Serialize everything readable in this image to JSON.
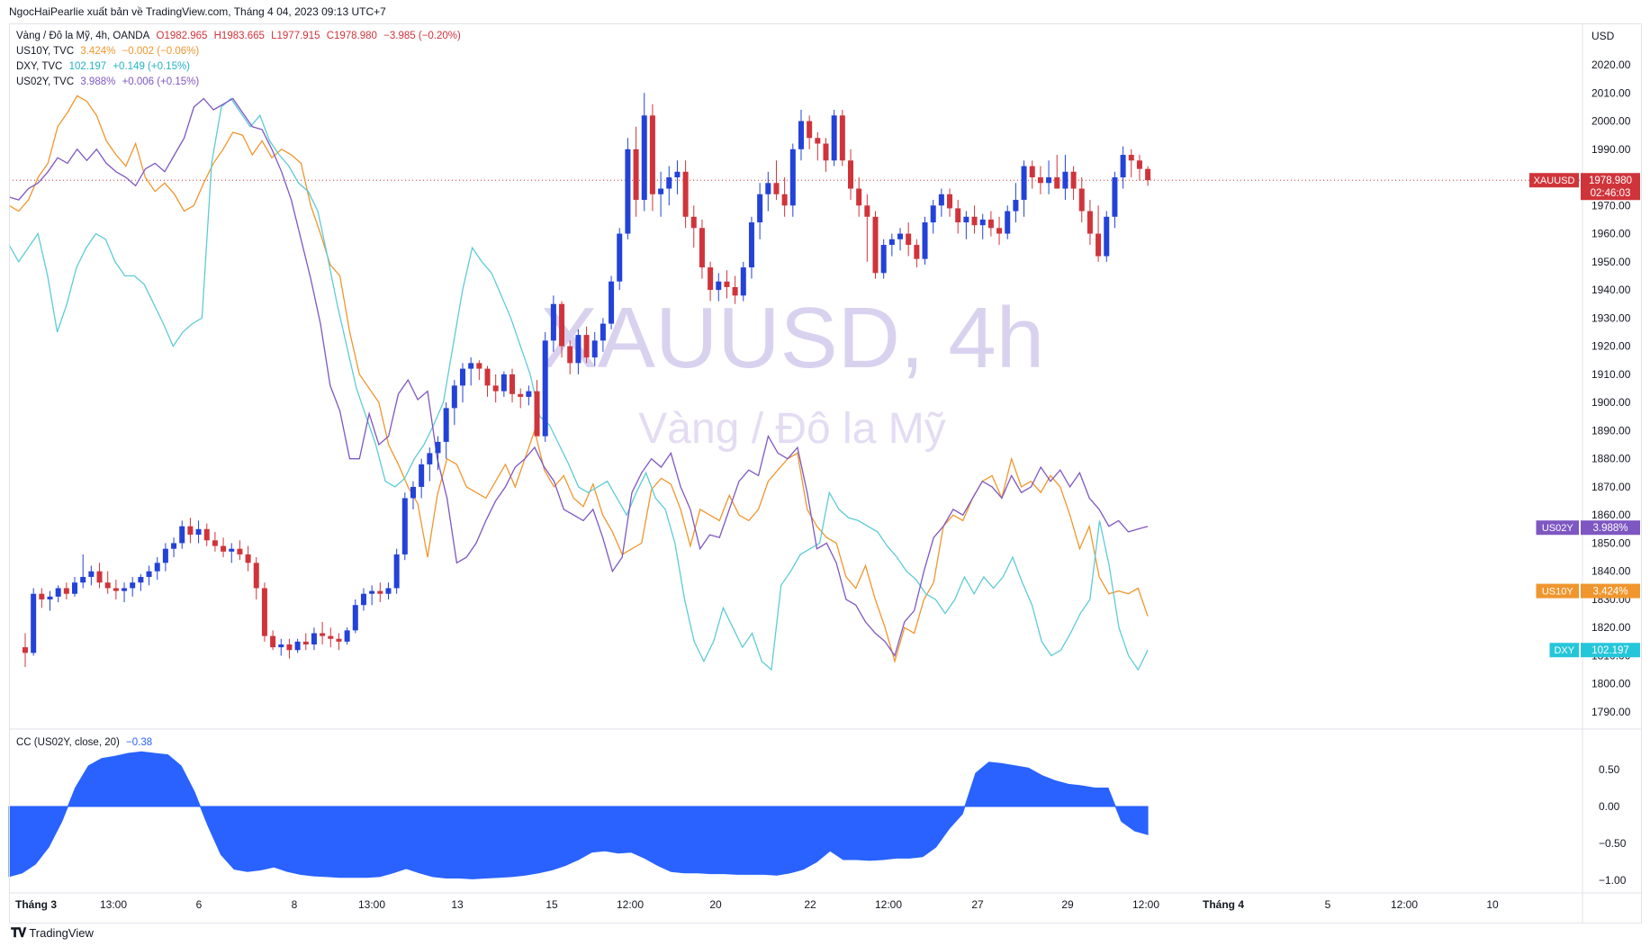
{
  "header": {
    "publisher_line": "NgocHaiPearlie xuất bản về TradingView.com, Tháng 4 04, 2023 09:13 UTC+7"
  },
  "legend": {
    "main": {
      "title": "Vàng / Đô la Mỹ, 4h, OANDA",
      "o": "O1982.965",
      "h": "H1983.665",
      "l": "L1977.915",
      "c": "C1978.980",
      "chg": "−3.985 (−0.20%)"
    },
    "us10y": {
      "title": "US10Y, TVC",
      "value": "3.424%",
      "chg": "−0.002 (−0.06%)"
    },
    "dxy": {
      "title": "DXY, TVC",
      "value": "102.197",
      "chg": "+0.149 (+0.15%)"
    },
    "us02y": {
      "title": "US02Y, TVC",
      "value": "3.988%",
      "chg": "+0.006 (+0.15%)"
    },
    "cc": {
      "title": "CC (US02Y, close, 20)",
      "value": "−0.38"
    }
  },
  "watermark": {
    "symbol": "XAUUSD, 4h",
    "description": "Vàng / Đô la Mỹ"
  },
  "footer": {
    "brand": "TradingView",
    "logo": "tv-logo-icon"
  },
  "colors": {
    "up": "#2342d8",
    "down": "#d0343b",
    "us10y": "#f0962e",
    "dxy": "#5ecbd6",
    "us02y": "#7e57c2",
    "cc_fill": "#2962ff",
    "price_line": "#d0343b"
  },
  "chart_data": {
    "type": "candlestick",
    "price_axis": {
      "unit": "USD",
      "min": 1785,
      "max": 2030,
      "ticks": [
        2020,
        2010,
        2000,
        1990,
        1980,
        1970,
        1960,
        1950,
        1940,
        1930,
        1920,
        1910,
        1900,
        1890,
        1880,
        1870,
        1860,
        1850,
        1840,
        1830,
        1820,
        1810,
        1800,
        1790
      ]
    },
    "time_axis": {
      "labels": [
        "Tháng 3",
        "13:00",
        "6",
        "8",
        "13:00",
        "13",
        "15",
        "12:00",
        "20",
        "22",
        "12:00",
        "27",
        "29",
        "12:00",
        "Tháng 4",
        "5",
        "12:00",
        "10"
      ]
    },
    "price_badges": [
      {
        "label": "XAUUSD",
        "value": "1978.980",
        "countdown": "02:46:03",
        "price": 1978.98
      },
      {
        "label": "US02Y",
        "value": "3.988%",
        "price": 1855.5
      },
      {
        "label": "US10Y",
        "value": "3.424%",
        "price": 1833.0
      },
      {
        "label": "DXY",
        "value": "102.197",
        "price": 1812.0
      }
    ],
    "current_price": 1978.98,
    "candles": [
      [
        1813,
        1818,
        1806,
        1811
      ],
      [
        1811,
        1834,
        1810,
        1832
      ],
      [
        1832,
        1834,
        1827,
        1830
      ],
      [
        1830,
        1833,
        1826,
        1831
      ],
      [
        1831,
        1835,
        1829,
        1834
      ],
      [
        1834,
        1836,
        1830,
        1832
      ],
      [
        1832,
        1838,
        1831,
        1836
      ],
      [
        1836,
        1846,
        1834,
        1838
      ],
      [
        1838,
        1842,
        1835,
        1840
      ],
      [
        1840,
        1843,
        1834,
        1836
      ],
      [
        1836,
        1840,
        1832,
        1834
      ],
      [
        1834,
        1837,
        1830,
        1833
      ],
      [
        1833,
        1836,
        1829,
        1834
      ],
      [
        1834,
        1838,
        1831,
        1836
      ],
      [
        1836,
        1839,
        1833,
        1838
      ],
      [
        1838,
        1842,
        1835,
        1840
      ],
      [
        1840,
        1845,
        1837,
        1843
      ],
      [
        1843,
        1850,
        1840,
        1848
      ],
      [
        1848,
        1852,
        1845,
        1850
      ],
      [
        1850,
        1858,
        1848,
        1856
      ],
      [
        1856,
        1859,
        1850,
        1853
      ],
      [
        1853,
        1858,
        1850,
        1855
      ],
      [
        1855,
        1857,
        1849,
        1851
      ],
      [
        1851,
        1854,
        1847,
        1849
      ],
      [
        1849,
        1852,
        1845,
        1847
      ],
      [
        1847,
        1850,
        1843,
        1848
      ],
      [
        1848,
        1851,
        1844,
        1846
      ],
      [
        1846,
        1849,
        1840,
        1843
      ],
      [
        1843,
        1845,
        1830,
        1834
      ],
      [
        1834,
        1836,
        1815,
        1817
      ],
      [
        1817,
        1819,
        1812,
        1813
      ],
      [
        1813,
        1816,
        1810,
        1814
      ],
      [
        1814,
        1816,
        1809,
        1812
      ],
      [
        1812,
        1816,
        1811,
        1815
      ],
      [
        1815,
        1818,
        1812,
        1814
      ],
      [
        1814,
        1820,
        1812,
        1818
      ],
      [
        1818,
        1822,
        1814,
        1817
      ],
      [
        1817,
        1820,
        1813,
        1816
      ],
      [
        1816,
        1818,
        1812,
        1815
      ],
      [
        1815,
        1820,
        1814,
        1819
      ],
      [
        1819,
        1830,
        1818,
        1828
      ],
      [
        1828,
        1834,
        1826,
        1832
      ],
      [
        1832,
        1835,
        1828,
        1833
      ],
      [
        1833,
        1836,
        1829,
        1832
      ],
      [
        1832,
        1836,
        1830,
        1834
      ],
      [
        1834,
        1848,
        1832,
        1846
      ],
      [
        1846,
        1868,
        1844,
        1866
      ],
      [
        1866,
        1872,
        1862,
        1870
      ],
      [
        1870,
        1880,
        1866,
        1878
      ],
      [
        1878,
        1884,
        1872,
        1882
      ],
      [
        1882,
        1888,
        1876,
        1886
      ],
      [
        1886,
        1900,
        1880,
        1898
      ],
      [
        1898,
        1908,
        1892,
        1906
      ],
      [
        1906,
        1914,
        1900,
        1912
      ],
      [
        1912,
        1916,
        1906,
        1914
      ],
      [
        1914,
        1915,
        1908,
        1912
      ],
      [
        1912,
        1913,
        1902,
        1906
      ],
      [
        1906,
        1910,
        1900,
        1904
      ],
      [
        1904,
        1911,
        1902,
        1910
      ],
      [
        1910,
        1912,
        1900,
        1903
      ],
      [
        1903,
        1905,
        1898,
        1902
      ],
      [
        1902,
        1906,
        1899,
        1904
      ],
      [
        1904,
        1908,
        1890,
        1888
      ],
      [
        1888,
        1925,
        1886,
        1922
      ],
      [
        1922,
        1938,
        1918,
        1935
      ],
      [
        1935,
        1936,
        1916,
        1920
      ],
      [
        1920,
        1922,
        1910,
        1914
      ],
      [
        1914,
        1926,
        1910,
        1924
      ],
      [
        1924,
        1927,
        1914,
        1916
      ],
      [
        1916,
        1925,
        1913,
        1922
      ],
      [
        1922,
        1930,
        1918,
        1928
      ],
      [
        1928,
        1945,
        1926,
        1943
      ],
      [
        1943,
        1962,
        1940,
        1960
      ],
      [
        1960,
        1994,
        1958,
        1990
      ],
      [
        1990,
        1998,
        1966,
        1972
      ],
      [
        1972,
        2010,
        1968,
        2002
      ],
      [
        2002,
        2006,
        1968,
        1974
      ],
      [
        1974,
        1982,
        1966,
        1976
      ],
      [
        1976,
        1984,
        1970,
        1980
      ],
      [
        1980,
        1986,
        1974,
        1982
      ],
      [
        1982,
        1986,
        1962,
        1966
      ],
      [
        1966,
        1970,
        1955,
        1962
      ],
      [
        1962,
        1965,
        1944,
        1948
      ],
      [
        1948,
        1950,
        1936,
        1940
      ],
      [
        1940,
        1946,
        1936,
        1943
      ],
      [
        1943,
        1947,
        1937,
        1941
      ],
      [
        1941,
        1945,
        1935,
        1938
      ],
      [
        1938,
        1950,
        1936,
        1948
      ],
      [
        1948,
        1966,
        1944,
        1964
      ],
      [
        1964,
        1978,
        1958,
        1974
      ],
      [
        1974,
        1982,
        1968,
        1978
      ],
      [
        1978,
        1986,
        1972,
        1974
      ],
      [
        1974,
        1980,
        1966,
        1970
      ],
      [
        1970,
        1992,
        1966,
        1990
      ],
      [
        1990,
        2004,
        1986,
        2000
      ],
      [
        2000,
        2002,
        1990,
        1994
      ],
      [
        1994,
        1996,
        1986,
        1992
      ],
      [
        1992,
        1994,
        1982,
        1986
      ],
      [
        1986,
        2004,
        1984,
        2002
      ],
      [
        2002,
        2004,
        1984,
        1986
      ],
      [
        1986,
        1990,
        1972,
        1976
      ],
      [
        1976,
        1980,
        1966,
        1970
      ],
      [
        1970,
        1974,
        1950,
        1966
      ],
      [
        1966,
        1968,
        1944,
        1946
      ],
      [
        1946,
        1958,
        1944,
        1956
      ],
      [
        1956,
        1960,
        1952,
        1958
      ],
      [
        1958,
        1962,
        1954,
        1960
      ],
      [
        1960,
        1964,
        1952,
        1956
      ],
      [
        1956,
        1958,
        1948,
        1951
      ],
      [
        1951,
        1966,
        1949,
        1964
      ],
      [
        1964,
        1972,
        1960,
        1970
      ],
      [
        1970,
        1976,
        1966,
        1974
      ],
      [
        1974,
        1976,
        1966,
        1969
      ],
      [
        1969,
        1972,
        1960,
        1964
      ],
      [
        1964,
        1968,
        1958,
        1966
      ],
      [
        1966,
        1970,
        1960,
        1963
      ],
      [
        1963,
        1967,
        1958,
        1965
      ],
      [
        1965,
        1968,
        1959,
        1962
      ],
      [
        1962,
        1966,
        1956,
        1960
      ],
      [
        1960,
        1970,
        1958,
        1968
      ],
      [
        1968,
        1978,
        1964,
        1972
      ],
      [
        1972,
        1986,
        1966,
        1984
      ],
      [
        1984,
        1986,
        1976,
        1980
      ],
      [
        1980,
        1984,
        1974,
        1978
      ],
      [
        1978,
        1986,
        1974,
        1980
      ],
      [
        1980,
        1988,
        1976,
        1976
      ],
      [
        1976,
        1988,
        1972,
        1982
      ],
      [
        1982,
        1984,
        1972,
        1976
      ],
      [
        1976,
        1980,
        1964,
        1968
      ],
      [
        1968,
        1972,
        1956,
        1960
      ],
      [
        1960,
        1970,
        1950,
        1952
      ],
      [
        1952,
        1968,
        1950,
        1966
      ],
      [
        1966,
        1982,
        1962,
        1980
      ],
      [
        1980,
        1991,
        1976,
        1988
      ],
      [
        1988,
        1990,
        1980,
        1986
      ],
      [
        1986,
        1988,
        1979,
        1983
      ],
      [
        1983,
        1984,
        1977,
        1979
      ]
    ],
    "overlay_series": [
      {
        "name": "US10Y",
        "values": [
          1970,
          1968,
          1972,
          1980,
          1985,
          1998,
          2003,
          2009,
          2007,
          2002,
          1993,
          1988,
          1984,
          1992,
          1980,
          1975,
          1978,
          1974,
          1968,
          1970,
          1978,
          1985,
          1990,
          1996,
          1995,
          1988,
          1993,
          1987,
          1990,
          1988,
          1985,
          1970,
          1960,
          1949,
          1945,
          1925,
          1910,
          1905,
          1900,
          1885,
          1878,
          1870,
          1864,
          1845,
          1867,
          1880,
          1878,
          1870,
          1868,
          1866,
          1872,
          1878,
          1870,
          1880,
          1890,
          1876,
          1870,
          1874,
          1866,
          1863,
          1871,
          1860,
          1854,
          1846,
          1848,
          1850,
          1869,
          1873,
          1871,
          1862,
          1849,
          1862,
          1860,
          1858,
          1867,
          1860,
          1858,
          1862,
          1872,
          1876,
          1880,
          1882,
          1862,
          1856,
          1852,
          1850,
          1838,
          1834,
          1842,
          1830,
          1820,
          1808,
          1820,
          1818,
          1830,
          1836,
          1856,
          1860,
          1858,
          1866,
          1872,
          1874,
          1866,
          1880,
          1870,
          1872,
          1868,
          1874,
          1870,
          1860,
          1848,
          1856,
          1838,
          1832,
          1833,
          1832,
          1834,
          1824
        ]
      },
      {
        "name": "DXY",
        "values": [
          1956,
          1950,
          1955,
          1960,
          1945,
          1925,
          1935,
          1948,
          1955,
          1960,
          1958,
          1950,
          1945,
          1945,
          1942,
          1935,
          1928,
          1920,
          1925,
          1928,
          1930,
          1985,
          2005,
          2008,
          2003,
          1998,
          2002,
          1993,
          1988,
          1984,
          1978,
          1975,
          1968,
          1952,
          1935,
          1920,
          1905,
          1895,
          1885,
          1872,
          1870,
          1873,
          1880,
          1885,
          1892,
          1900,
          1920,
          1940,
          1955,
          1950,
          1946,
          1938,
          1930,
          1920,
          1910,
          1895,
          1892,
          1885,
          1878,
          1870,
          1868,
          1870,
          1872,
          1866,
          1860,
          1868,
          1875,
          1866,
          1862,
          1850,
          1830,
          1815,
          1808,
          1815,
          1827,
          1820,
          1813,
          1818,
          1808,
          1805,
          1835,
          1840,
          1846,
          1848,
          1850,
          1868,
          1862,
          1859,
          1858,
          1856,
          1854,
          1849,
          1845,
          1840,
          1837,
          1832,
          1830,
          1825,
          1830,
          1838,
          1832,
          1838,
          1834,
          1838,
          1845,
          1836,
          1828,
          1815,
          1810,
          1812,
          1818,
          1825,
          1830,
          1858,
          1842,
          1820,
          1810,
          1805,
          1812
        ]
      },
      {
        "name": "US02Y",
        "values": [
          1973,
          1972,
          1976,
          1978,
          1982,
          1987,
          1985,
          1990,
          1986,
          1990,
          1985,
          1982,
          1980,
          1977,
          1983,
          1985,
          1982,
          1988,
          1994,
          2005,
          2008,
          2004,
          2006,
          2008,
          2003,
          1998,
          1997,
          1990,
          1982,
          1972,
          1958,
          1944,
          1928,
          1906,
          1897,
          1880,
          1880,
          1896,
          1885,
          1888,
          1903,
          1908,
          1901,
          1904,
          1880,
          1866,
          1843,
          1845,
          1850,
          1858,
          1865,
          1870,
          1877,
          1880,
          1884,
          1877,
          1872,
          1862,
          1860,
          1858,
          1862,
          1852,
          1840,
          1845,
          1868,
          1875,
          1880,
          1877,
          1882,
          1870,
          1862,
          1848,
          1853,
          1852,
          1862,
          1872,
          1876,
          1874,
          1888,
          1882,
          1880,
          1884,
          1868,
          1848,
          1850,
          1843,
          1830,
          1828,
          1822,
          1818,
          1815,
          1810,
          1822,
          1826,
          1840,
          1852,
          1856,
          1862,
          1860,
          1866,
          1872,
          1870,
          1866,
          1874,
          1868,
          1870,
          1877,
          1872,
          1876,
          1870,
          1875,
          1866,
          1862,
          1856,
          1858,
          1854,
          1855,
          1856
        ]
      }
    ],
    "indicator": {
      "name": "CC (US02Y, close, 20)",
      "ticks": [
        0.5,
        0.0,
        -0.5,
        -1.0
      ],
      "tick_labels": [
        "0.50",
        "0.00",
        "−0.50",
        "−1.00"
      ],
      "ylim": [
        -1.05,
        0.78
      ],
      "values": [
        -0.95,
        -0.9,
        -0.78,
        -0.55,
        -0.2,
        0.25,
        0.55,
        0.65,
        0.68,
        0.72,
        0.74,
        0.72,
        0.7,
        0.55,
        0.2,
        -0.25,
        -0.65,
        -0.85,
        -0.88,
        -0.86,
        -0.82,
        -0.88,
        -0.92,
        -0.94,
        -0.95,
        -0.96,
        -0.96,
        -0.96,
        -0.95,
        -0.9,
        -0.84,
        -0.9,
        -0.95,
        -0.97,
        -0.97,
        -0.98,
        -0.97,
        -0.96,
        -0.95,
        -0.93,
        -0.9,
        -0.86,
        -0.8,
        -0.72,
        -0.62,
        -0.6,
        -0.63,
        -0.62,
        -0.7,
        -0.8,
        -0.88,
        -0.9,
        -0.9,
        -0.91,
        -0.91,
        -0.92,
        -0.92,
        -0.92,
        -0.93,
        -0.9,
        -0.85,
        -0.75,
        -0.6,
        -0.72,
        -0.72,
        -0.73,
        -0.72,
        -0.7,
        -0.7,
        -0.68,
        -0.55,
        -0.3,
        -0.1,
        0.45,
        0.6,
        0.58,
        0.55,
        0.52,
        0.42,
        0.35,
        0.3,
        0.28,
        0.25,
        0.25,
        -0.2,
        -0.33,
        -0.38
      ]
    }
  }
}
